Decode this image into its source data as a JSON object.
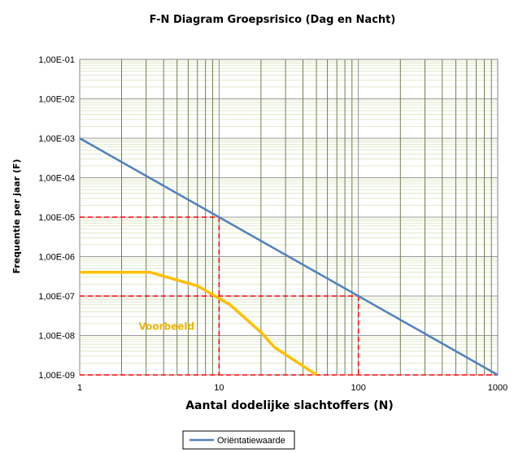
{
  "chart_data": {
    "type": "line",
    "title": "F-N Diagram Groepsrisico (Dag en Nacht)",
    "xlabel": "Aantal dodelijke slachtoffers (N)",
    "ylabel": "Frequentie per jaar (F)",
    "x_scale": "log",
    "y_scale": "log",
    "xlim": [
      1,
      1000
    ],
    "ylim": [
      1e-09,
      0.1
    ],
    "x_ticks": [
      {
        "value": 1,
        "label": "1"
      },
      {
        "value": 10,
        "label": "10"
      },
      {
        "value": 100,
        "label": "100"
      },
      {
        "value": 1000,
        "label": "1000"
      }
    ],
    "y_ticks": [
      {
        "value": 1e-09,
        "label": "1,00E-09"
      },
      {
        "value": 1e-08,
        "label": "1,00E-08"
      },
      {
        "value": 1e-07,
        "label": "1,00E-07"
      },
      {
        "value": 1e-06,
        "label": "1,00E-06"
      },
      {
        "value": 1e-05,
        "label": "1,00E-05"
      },
      {
        "value": 0.0001,
        "label": "1,00E-04"
      },
      {
        "value": 0.001,
        "label": "1,00E-03"
      },
      {
        "value": 0.01,
        "label": "1,00E-02"
      },
      {
        "value": 0.1,
        "label": "1,00E-01"
      }
    ],
    "grid": true,
    "legend_position": "bottom-left",
    "series": [
      {
        "name": "Oriëntatiewaarde",
        "color": "#4f81bd",
        "in_legend": true,
        "x": [
          1,
          1000
        ],
        "y": [
          0.001,
          1e-09
        ]
      },
      {
        "color": "#ffc000",
        "in_legend": false,
        "x": [
          1,
          3.2,
          7,
          12,
          20,
          25,
          50
        ],
        "y": [
          4e-07,
          4e-07,
          1.8e-07,
          6e-08,
          1.2e-08,
          5e-09,
          1e-09
        ]
      }
    ],
    "reference_lines": {
      "color": "#ff0000",
      "style": "dashed",
      "segments": [
        {
          "x": [
            1,
            10
          ],
          "y": [
            1e-05,
            1e-05
          ]
        },
        {
          "x": [
            10,
            10
          ],
          "y": [
            1e-05,
            1e-09
          ]
        },
        {
          "x": [
            1,
            100
          ],
          "y": [
            1e-07,
            1e-07
          ]
        },
        {
          "x": [
            100,
            100
          ],
          "y": [
            1e-07,
            1e-09
          ]
        },
        {
          "x": [
            1,
            1000
          ],
          "y": [
            1e-09,
            1e-09
          ]
        }
      ]
    },
    "annotations": [
      {
        "text": "Voorbeeld",
        "x": 4.2,
        "y": 1.4e-08,
        "color": "#ffc000"
      }
    ]
  }
}
